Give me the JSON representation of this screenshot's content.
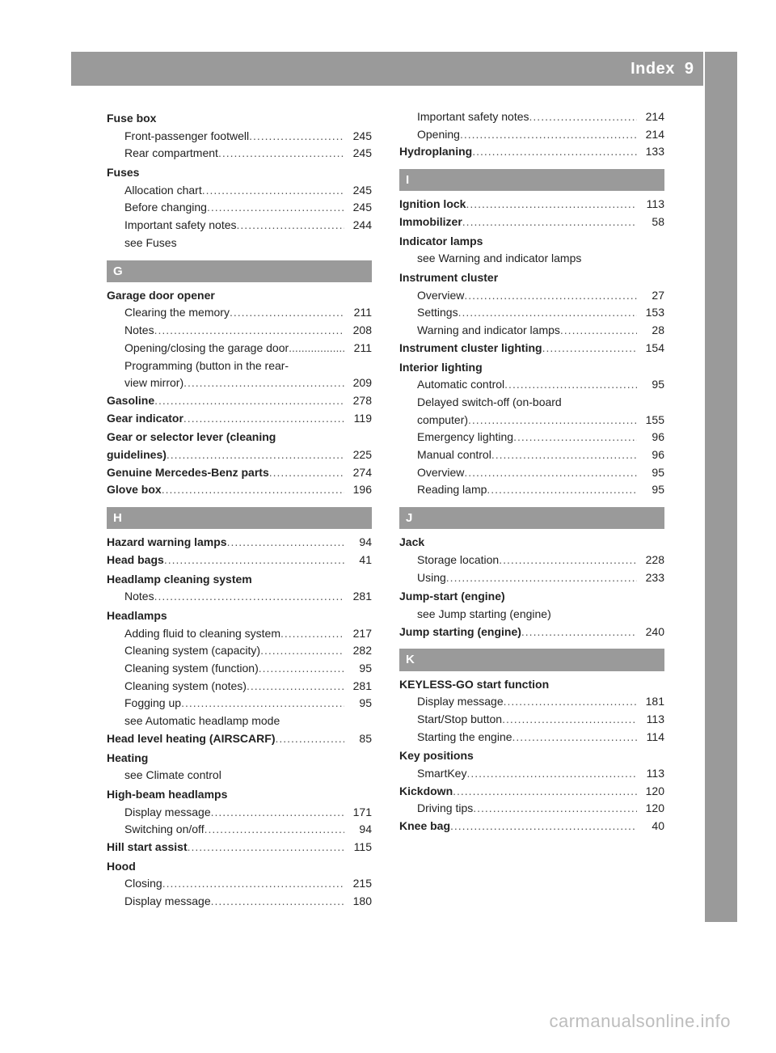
{
  "header": {
    "title": "Index",
    "page": "9"
  },
  "watermark": "carmanualsonline.info",
  "left": [
    {
      "t": "heading",
      "label": "Fuse box"
    },
    {
      "t": "sub",
      "label": "Front-passenger footwell",
      "pg": "245"
    },
    {
      "t": "sub",
      "label": "Rear compartment",
      "pg": "245"
    },
    {
      "t": "heading",
      "label": "Fuses"
    },
    {
      "t": "sub",
      "label": "Allocation chart",
      "pg": "245"
    },
    {
      "t": "sub",
      "label": "Before changing",
      "pg": "245"
    },
    {
      "t": "sub",
      "label": "Important safety notes",
      "pg": "244"
    },
    {
      "t": "xref",
      "label": "see Fuses"
    },
    {
      "t": "letter",
      "label": "G"
    },
    {
      "t": "heading",
      "label": "Garage door opener"
    },
    {
      "t": "sub",
      "label": "Clearing the memory",
      "pg": "211"
    },
    {
      "t": "sub",
      "label": "Notes",
      "pg": "208"
    },
    {
      "t": "sub",
      "label": "Opening/closing the garage door",
      "pg": "211",
      "tight": true
    },
    {
      "t": "sub2",
      "label1": "Programming (button in the rear-",
      "label2": "view mirror)",
      "pg": "209"
    },
    {
      "t": "boldline",
      "label": "Gasoline",
      "pg": "278"
    },
    {
      "t": "boldline",
      "label": "Gear indicator",
      "pg": "119"
    },
    {
      "t": "bold2",
      "label1": "Gear or selector lever (cleaning",
      "label2": "guidelines)",
      "pg": "225"
    },
    {
      "t": "boldline",
      "label": "Genuine Mercedes-Benz parts",
      "pg": "274"
    },
    {
      "t": "boldline",
      "label": "Glove box",
      "pg": "196"
    },
    {
      "t": "letter",
      "label": "H"
    },
    {
      "t": "boldline",
      "label": "Hazard warning lamps",
      "pg": "94"
    },
    {
      "t": "boldline",
      "label": "Head bags",
      "pg": "41"
    },
    {
      "t": "heading",
      "label": "Headlamp cleaning system"
    },
    {
      "t": "sub",
      "label": "Notes",
      "pg": "281"
    },
    {
      "t": "heading",
      "label": "Headlamps"
    },
    {
      "t": "sub",
      "label": "Adding fluid to cleaning system",
      "pg": "217"
    },
    {
      "t": "sub",
      "label": "Cleaning system (capacity)",
      "pg": "282"
    },
    {
      "t": "sub",
      "label": "Cleaning system (function)",
      "pg": "95"
    },
    {
      "t": "sub",
      "label": "Cleaning system (notes)",
      "pg": "281"
    },
    {
      "t": "sub",
      "label": "Fogging up",
      "pg": "95"
    },
    {
      "t": "xref",
      "label": "see Automatic headlamp mode"
    },
    {
      "t": "boldline",
      "label": "Head level heating (AIRSCARF)",
      "pg": "85"
    },
    {
      "t": "heading",
      "label": "Heating"
    },
    {
      "t": "xref",
      "label": "see Climate control"
    },
    {
      "t": "heading",
      "label": "High-beam headlamps"
    },
    {
      "t": "sub",
      "label": "Display message",
      "pg": "171"
    },
    {
      "t": "sub",
      "label": "Switching on/off",
      "pg": "94"
    },
    {
      "t": "boldline",
      "label": "Hill start assist",
      "pg": "115"
    },
    {
      "t": "heading",
      "label": "Hood"
    },
    {
      "t": "sub",
      "label": "Closing",
      "pg": "215"
    },
    {
      "t": "sub",
      "label": "Display message",
      "pg": "180"
    }
  ],
  "right": [
    {
      "t": "sub",
      "label": "Important safety notes",
      "pg": "214"
    },
    {
      "t": "sub",
      "label": "Opening",
      "pg": "214"
    },
    {
      "t": "boldline",
      "label": "Hydroplaning",
      "pg": "133"
    },
    {
      "t": "letter",
      "label": "I"
    },
    {
      "t": "boldline",
      "label": "Ignition lock",
      "pg": "113"
    },
    {
      "t": "boldline",
      "label": "Immobilizer",
      "pg": "58"
    },
    {
      "t": "heading",
      "label": "Indicator lamps"
    },
    {
      "t": "xref",
      "label": "see Warning and indicator lamps"
    },
    {
      "t": "heading",
      "label": "Instrument cluster"
    },
    {
      "t": "sub",
      "label": "Overview",
      "pg": "27"
    },
    {
      "t": "sub",
      "label": "Settings",
      "pg": "153"
    },
    {
      "t": "sub",
      "label": "Warning and indicator lamps",
      "pg": "28"
    },
    {
      "t": "boldline",
      "label": "Instrument cluster lighting",
      "pg": "154"
    },
    {
      "t": "heading",
      "label": "Interior lighting"
    },
    {
      "t": "sub",
      "label": "Automatic control",
      "pg": "95"
    },
    {
      "t": "sub2",
      "label1": "Delayed switch-off (on-board",
      "label2": "computer)",
      "pg": "155"
    },
    {
      "t": "sub",
      "label": "Emergency lighting",
      "pg": "96"
    },
    {
      "t": "sub",
      "label": "Manual control",
      "pg": "96"
    },
    {
      "t": "sub",
      "label": "Overview",
      "pg": "95"
    },
    {
      "t": "sub",
      "label": "Reading lamp",
      "pg": "95"
    },
    {
      "t": "letter",
      "label": "J"
    },
    {
      "t": "heading",
      "label": "Jack"
    },
    {
      "t": "sub",
      "label": "Storage location",
      "pg": "228"
    },
    {
      "t": "sub",
      "label": "Using",
      "pg": "233"
    },
    {
      "t": "heading",
      "label": "Jump-start (engine)"
    },
    {
      "t": "xref",
      "label": "see Jump starting (engine)"
    },
    {
      "t": "boldline",
      "label": "Jump starting (engine)",
      "pg": "240"
    },
    {
      "t": "letter",
      "label": "K"
    },
    {
      "t": "heading",
      "label": "KEYLESS-GO start function"
    },
    {
      "t": "sub",
      "label": "Display message",
      "pg": "181"
    },
    {
      "t": "sub",
      "label": "Start/Stop button",
      "pg": "113"
    },
    {
      "t": "sub",
      "label": "Starting the engine",
      "pg": "114"
    },
    {
      "t": "heading",
      "label": "Key positions"
    },
    {
      "t": "sub",
      "label": "SmartKey",
      "pg": "113"
    },
    {
      "t": "boldline",
      "label": "Kickdown",
      "pg": "120"
    },
    {
      "t": "sub",
      "label": "Driving tips",
      "pg": "120"
    },
    {
      "t": "boldline",
      "label": "Knee bag",
      "pg": "40"
    }
  ]
}
